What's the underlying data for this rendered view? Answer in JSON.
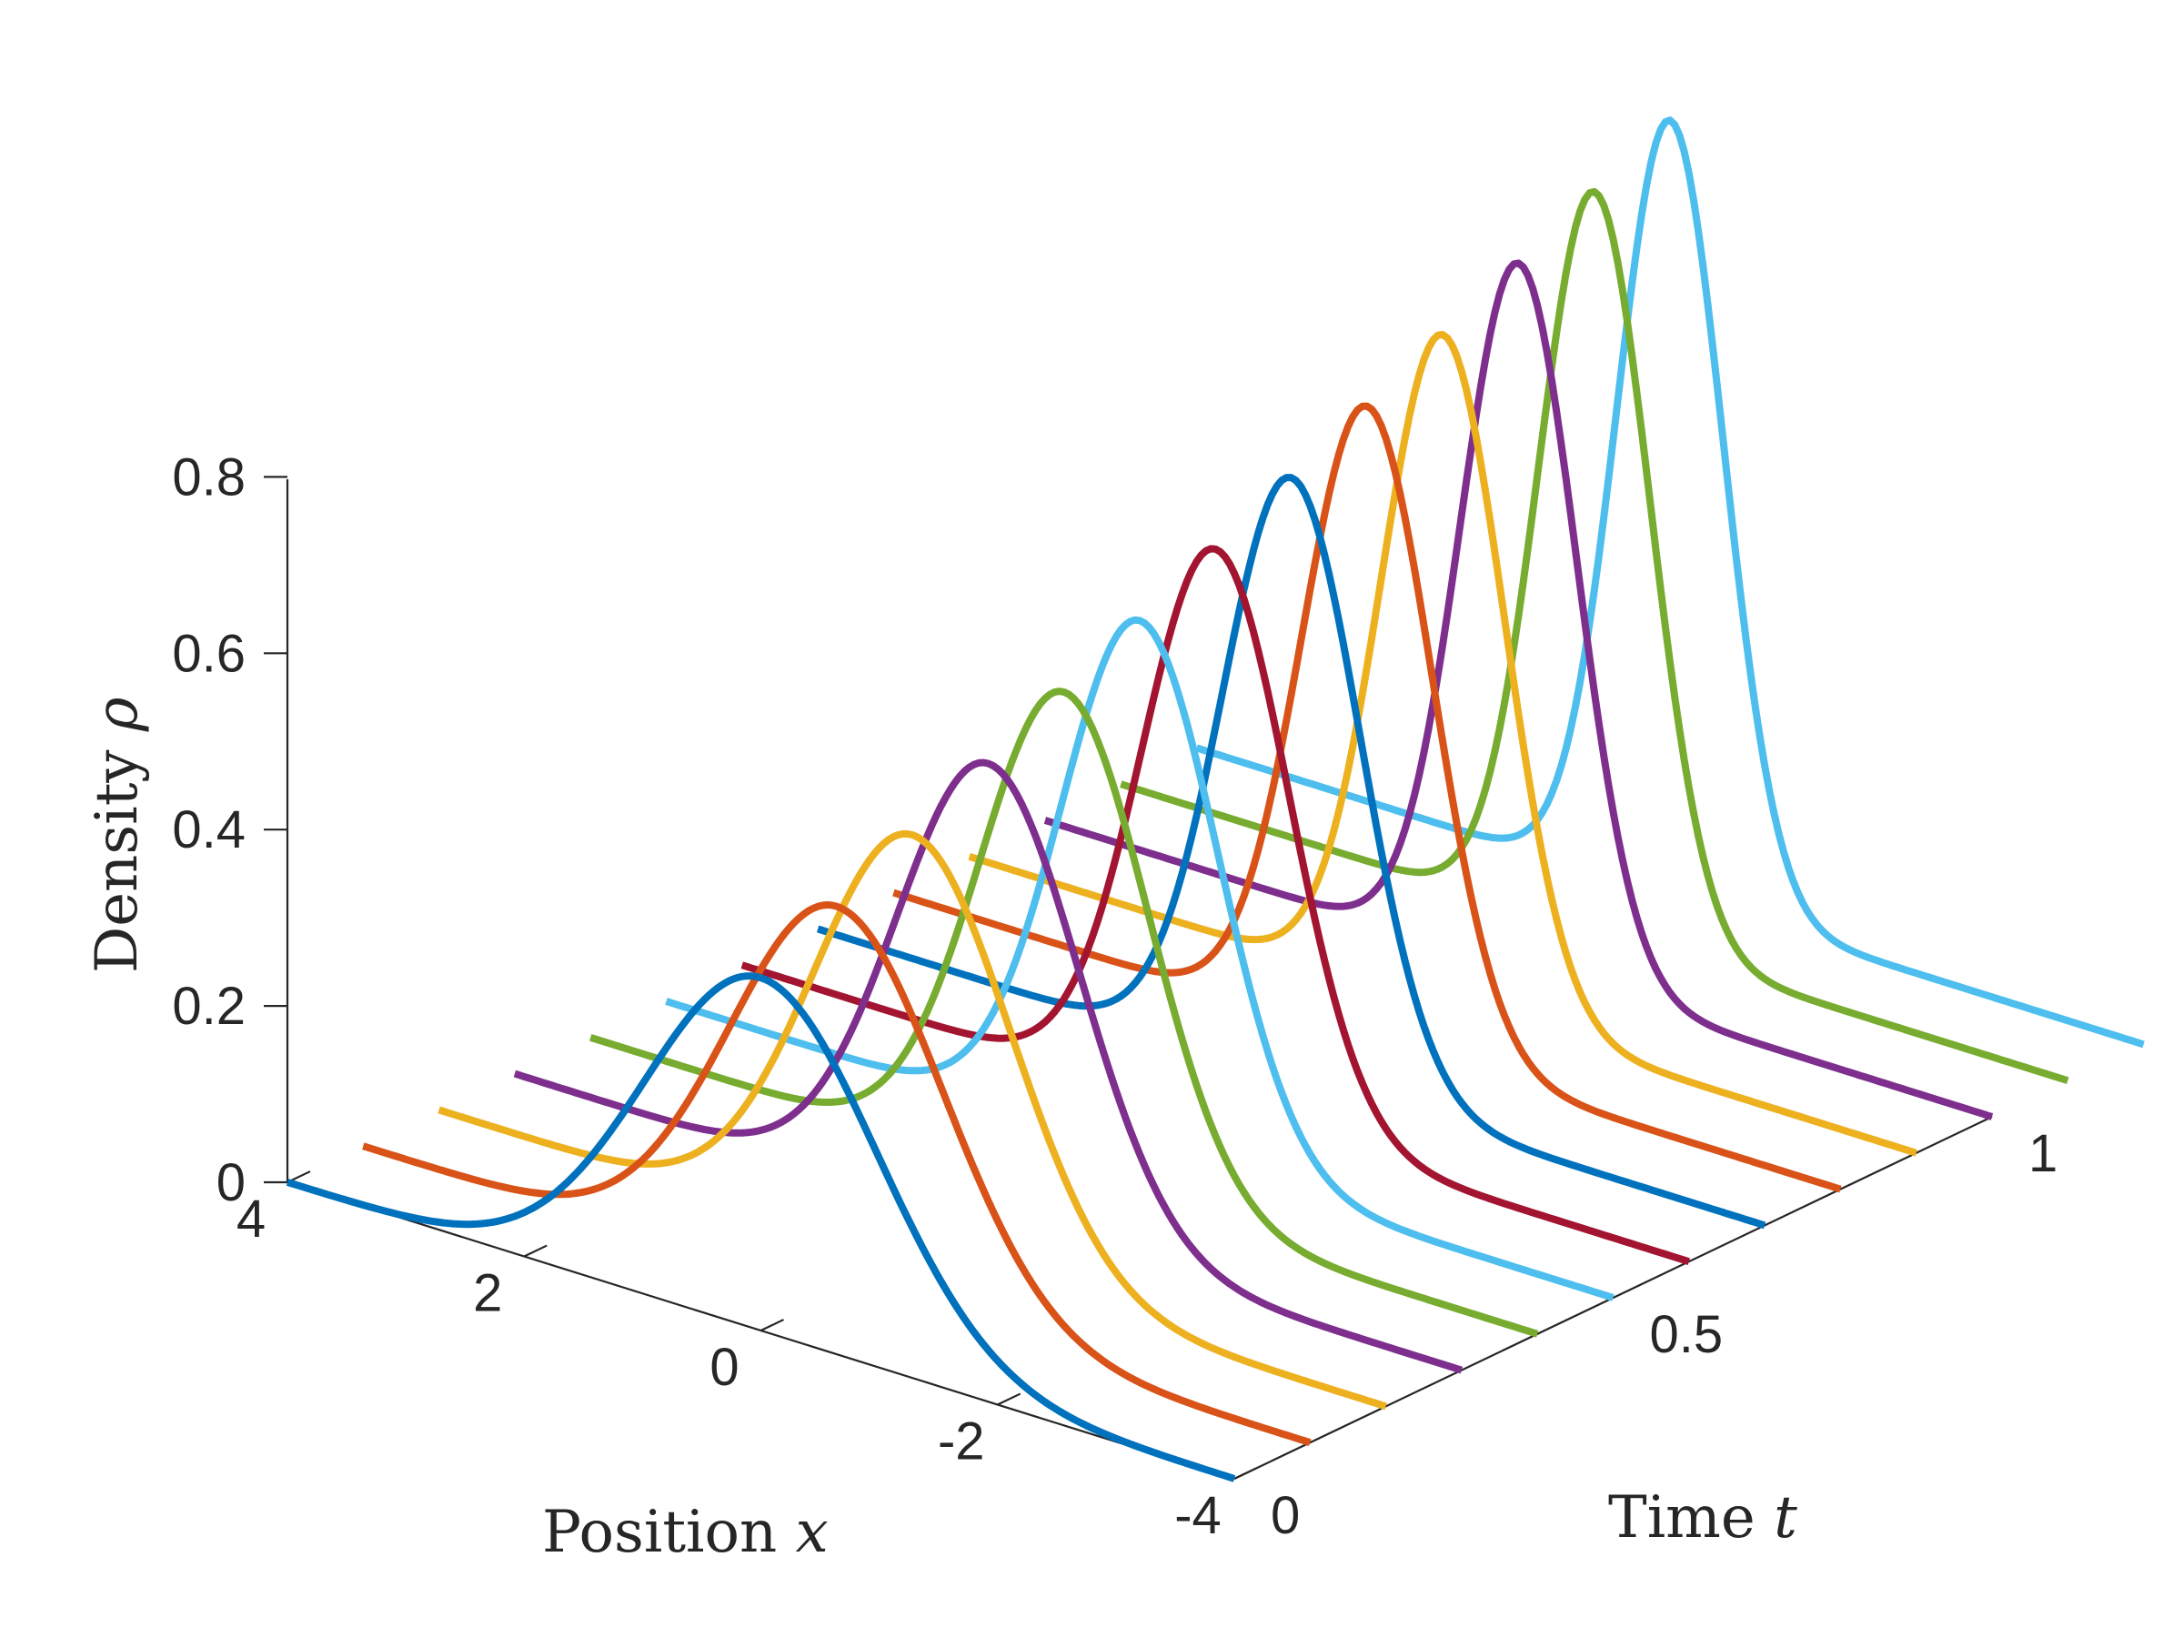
{
  "chart_data": {
    "type": "line",
    "view": "3d-waterfall",
    "xlabel": {
      "text": "Position ",
      "var": "x"
    },
    "ylabel": {
      "text": "Density ",
      "var": "ρ"
    },
    "tlabel": {
      "text": "Time ",
      "var": "t"
    },
    "x_range": [
      -4,
      4
    ],
    "t_range": [
      0,
      1
    ],
    "z_range": [
      0,
      0.8
    ],
    "x_ticks": [
      {
        "value": 4,
        "label": "4"
      },
      {
        "value": 2,
        "label": "2"
      },
      {
        "value": 0,
        "label": "0"
      },
      {
        "value": -2,
        "label": "-2"
      },
      {
        "value": -4,
        "label": "-4"
      }
    ],
    "t_ticks": [
      {
        "value": 0,
        "label": "0"
      },
      {
        "value": 0.5,
        "label": "0.5"
      },
      {
        "value": 1,
        "label": "1"
      }
    ],
    "z_ticks": [
      {
        "value": 0,
        "label": "0"
      },
      {
        "value": 0.2,
        "label": "0.2"
      },
      {
        "value": 0.4,
        "label": "0.4"
      },
      {
        "value": 0.6,
        "label": "0.6"
      },
      {
        "value": 0.8,
        "label": "0.8"
      }
    ],
    "series": [
      {
        "t": 0.0,
        "peak_x": 0.0,
        "peak_density": 0.4,
        "width": 0.98,
        "color": "#0072BD"
      },
      {
        "t": 0.1,
        "peak_x": 0.0,
        "peak_density": 0.44,
        "width": 0.9,
        "color": "#D95319"
      },
      {
        "t": 0.2,
        "peak_x": 0.0,
        "peak_density": 0.48,
        "width": 0.83,
        "color": "#EDB120"
      },
      {
        "t": 0.3,
        "peak_x": 0.0,
        "peak_density": 0.52,
        "width": 0.77,
        "color": "#7E2F8E"
      },
      {
        "t": 0.4,
        "peak_x": 0.0,
        "peak_density": 0.56,
        "width": 0.71,
        "color": "#77AC30"
      },
      {
        "t": 0.5,
        "peak_x": 0.0,
        "peak_density": 0.6,
        "width": 0.66,
        "color": "#4DBEEE"
      },
      {
        "t": 0.6,
        "peak_x": 0.0,
        "peak_density": 0.64,
        "width": 0.62,
        "color": "#A2142F"
      },
      {
        "t": 0.7,
        "peak_x": 0.0,
        "peak_density": 0.68,
        "width": 0.58,
        "color": "#0072BD"
      },
      {
        "t": 0.8,
        "peak_x": 0.0,
        "peak_density": 0.72,
        "width": 0.55,
        "color": "#D95319"
      },
      {
        "t": 0.9,
        "peak_x": 0.0,
        "peak_density": 0.76,
        "width": 0.52,
        "color": "#EDB120"
      },
      {
        "t": 1.0,
        "peak_x": 0.0,
        "peak_density": 0.8,
        "width": 0.49,
        "color": "#7E2F8E"
      },
      {
        "t": 1.1,
        "peak_x": 0.0,
        "peak_density": 0.84,
        "width": 0.47,
        "color": "#77AC30"
      },
      {
        "t": 1.2,
        "peak_x": 0.0,
        "peak_density": 0.88,
        "width": 0.45,
        "color": "#4DBEEE"
      }
    ],
    "grid": false,
    "legend": "none"
  }
}
